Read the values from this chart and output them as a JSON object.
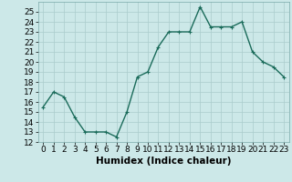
{
  "x": [
    0,
    1,
    2,
    3,
    4,
    5,
    6,
    7,
    8,
    9,
    10,
    11,
    12,
    13,
    14,
    15,
    16,
    17,
    18,
    19,
    20,
    21,
    22,
    23
  ],
  "y": [
    15.5,
    17.0,
    16.5,
    14.5,
    13.0,
    13.0,
    13.0,
    12.5,
    15.0,
    18.5,
    19.0,
    21.5,
    23.0,
    23.0,
    23.0,
    25.5,
    23.5,
    23.5,
    23.5,
    24.0,
    21.0,
    20.0,
    19.5,
    18.5
  ],
  "line_color": "#1a6b5a",
  "marker": "+",
  "marker_size": 3,
  "bg_color": "#cce8e8",
  "grid_color": "#aacccc",
  "xlabel": "Humidex (Indice chaleur)",
  "xlim": [
    -0.5,
    23.5
  ],
  "ylim": [
    12,
    26
  ],
  "yticks": [
    12,
    13,
    14,
    15,
    16,
    17,
    18,
    19,
    20,
    21,
    22,
    23,
    24,
    25
  ],
  "xticks": [
    0,
    1,
    2,
    3,
    4,
    5,
    6,
    7,
    8,
    9,
    10,
    11,
    12,
    13,
    14,
    15,
    16,
    17,
    18,
    19,
    20,
    21,
    22,
    23
  ],
  "xtick_labels": [
    "0",
    "1",
    "2",
    "3",
    "4",
    "5",
    "6",
    "7",
    "8",
    "9",
    "10",
    "11",
    "12",
    "13",
    "14",
    "15",
    "16",
    "17",
    "18",
    "19",
    "20",
    "21",
    "22",
    "23"
  ],
  "axis_fontsize": 7.5,
  "tick_fontsize": 6.5,
  "linewidth": 1.0,
  "markeredgewidth": 0.8
}
